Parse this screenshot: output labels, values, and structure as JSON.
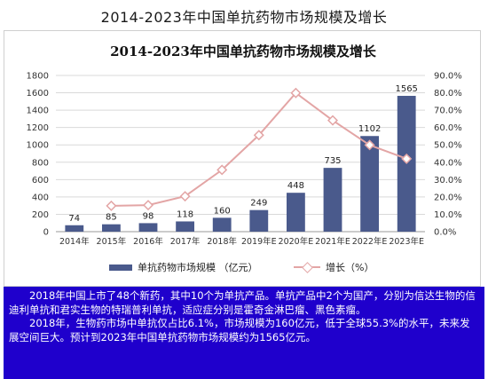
{
  "slide": {
    "title": "2014-2023年中国单抗药物市场规模及增长"
  },
  "chart_data": {
    "type": "bar",
    "title": "2014-2023年中国单抗药物市场规模及增长",
    "categories": [
      "2014年",
      "2015年",
      "2016年",
      "2017年",
      "2018年",
      "2019年E",
      "2020年E",
      "2021年E",
      "2022年E",
      "2023年E"
    ],
    "series": [
      {
        "name": "单抗药物市场规模（亿元）",
        "type": "bar",
        "axis": "left",
        "color": "#4a5a8c",
        "values": [
          74,
          85,
          98,
          118,
          160,
          249,
          448,
          735,
          1102,
          1565
        ]
      },
      {
        "name": "增长（%）",
        "type": "line",
        "axis": "right",
        "color": "#e3a5a5",
        "values": [
          null,
          14.9,
          15.3,
          20.4,
          35.6,
          55.6,
          79.9,
          64.1,
          49.9,
          42.0
        ]
      }
    ],
    "ylim_left": [
      0,
      1800
    ],
    "yticks_left": [
      "0",
      "200",
      "400",
      "600",
      "800",
      "1000",
      "1200",
      "1400",
      "1600",
      "1800"
    ],
    "ylim_right": [
      0,
      90
    ],
    "yticks_right": [
      "0.0%",
      "10.0%",
      "20.0%",
      "30.0%",
      "40.0%",
      "50.0%",
      "60.0%",
      "70.0%",
      "80.0%",
      "90.0%"
    ],
    "grid": true,
    "legend_position": "bottom"
  },
  "legend": {
    "bar_label": "单抗药物市场规模 （亿元）",
    "line_label": "增长（%）"
  },
  "text_panel": {
    "paragraph_1": "2018年中国上市了48个新药，其中10个为单抗产品。单抗产品中2个为国产，分别为信达生物的信迪利单抗和君实生物的特瑞普利单抗，适应症分别是霍奇金淋巴瘤、黑色素瘤。",
    "paragraph_2": "2018年，生物药市场中单抗仅占比6.1%，市场规模为160亿元，低于全球55.3%的水平，未来发展空间巨大。预计到2023年中国单抗药物市场规模约为1565亿元。"
  }
}
